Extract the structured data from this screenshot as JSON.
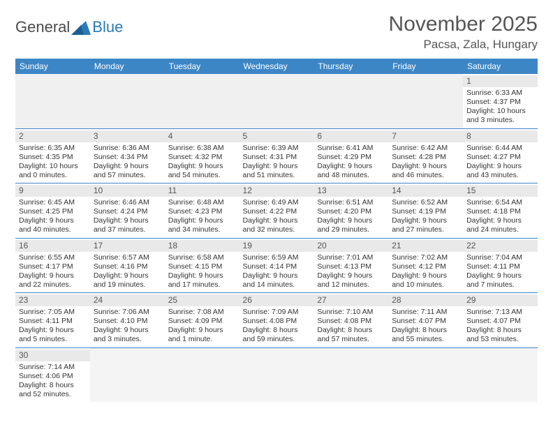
{
  "colors": {
    "header_bg": "#3d86c6",
    "header_text": "#ffffff",
    "daynum_bg": "#e9e9e9",
    "row_divider": "#3d86c6",
    "page_bg": "#ffffff",
    "title_text": "#555555",
    "body_text": "#333333",
    "logo_gray": "#4a4a4a",
    "logo_blue": "#2a7ab8"
  },
  "typography": {
    "title_fontsize": 30,
    "location_fontsize": 17,
    "header_fontsize": 12,
    "cell_fontsize": 10.5,
    "daynum_fontsize": 12
  },
  "logo": {
    "text1": "General",
    "text2": "Blue"
  },
  "title": "November 2025",
  "location": "Pacsa, Zala, Hungary",
  "weekdays": [
    "Sunday",
    "Monday",
    "Tuesday",
    "Wednesday",
    "Thursday",
    "Friday",
    "Saturday"
  ],
  "weeks": [
    [
      null,
      null,
      null,
      null,
      null,
      null,
      {
        "n": "1",
        "sr": "Sunrise: 6:33 AM",
        "ss": "Sunset: 4:37 PM",
        "d1": "Daylight: 10 hours",
        "d2": "and 3 minutes."
      }
    ],
    [
      {
        "n": "2",
        "sr": "Sunrise: 6:35 AM",
        "ss": "Sunset: 4:35 PM",
        "d1": "Daylight: 10 hours",
        "d2": "and 0 minutes."
      },
      {
        "n": "3",
        "sr": "Sunrise: 6:36 AM",
        "ss": "Sunset: 4:34 PM",
        "d1": "Daylight: 9 hours",
        "d2": "and 57 minutes."
      },
      {
        "n": "4",
        "sr": "Sunrise: 6:38 AM",
        "ss": "Sunset: 4:32 PM",
        "d1": "Daylight: 9 hours",
        "d2": "and 54 minutes."
      },
      {
        "n": "5",
        "sr": "Sunrise: 6:39 AM",
        "ss": "Sunset: 4:31 PM",
        "d1": "Daylight: 9 hours",
        "d2": "and 51 minutes."
      },
      {
        "n": "6",
        "sr": "Sunrise: 6:41 AM",
        "ss": "Sunset: 4:29 PM",
        "d1": "Daylight: 9 hours",
        "d2": "and 48 minutes."
      },
      {
        "n": "7",
        "sr": "Sunrise: 6:42 AM",
        "ss": "Sunset: 4:28 PM",
        "d1": "Daylight: 9 hours",
        "d2": "and 46 minutes."
      },
      {
        "n": "8",
        "sr": "Sunrise: 6:44 AM",
        "ss": "Sunset: 4:27 PM",
        "d1": "Daylight: 9 hours",
        "d2": "and 43 minutes."
      }
    ],
    [
      {
        "n": "9",
        "sr": "Sunrise: 6:45 AM",
        "ss": "Sunset: 4:25 PM",
        "d1": "Daylight: 9 hours",
        "d2": "and 40 minutes."
      },
      {
        "n": "10",
        "sr": "Sunrise: 6:46 AM",
        "ss": "Sunset: 4:24 PM",
        "d1": "Daylight: 9 hours",
        "d2": "and 37 minutes."
      },
      {
        "n": "11",
        "sr": "Sunrise: 6:48 AM",
        "ss": "Sunset: 4:23 PM",
        "d1": "Daylight: 9 hours",
        "d2": "and 34 minutes."
      },
      {
        "n": "12",
        "sr": "Sunrise: 6:49 AM",
        "ss": "Sunset: 4:22 PM",
        "d1": "Daylight: 9 hours",
        "d2": "and 32 minutes."
      },
      {
        "n": "13",
        "sr": "Sunrise: 6:51 AM",
        "ss": "Sunset: 4:20 PM",
        "d1": "Daylight: 9 hours",
        "d2": "and 29 minutes."
      },
      {
        "n": "14",
        "sr": "Sunrise: 6:52 AM",
        "ss": "Sunset: 4:19 PM",
        "d1": "Daylight: 9 hours",
        "d2": "and 27 minutes."
      },
      {
        "n": "15",
        "sr": "Sunrise: 6:54 AM",
        "ss": "Sunset: 4:18 PM",
        "d1": "Daylight: 9 hours",
        "d2": "and 24 minutes."
      }
    ],
    [
      {
        "n": "16",
        "sr": "Sunrise: 6:55 AM",
        "ss": "Sunset: 4:17 PM",
        "d1": "Daylight: 9 hours",
        "d2": "and 22 minutes."
      },
      {
        "n": "17",
        "sr": "Sunrise: 6:57 AM",
        "ss": "Sunset: 4:16 PM",
        "d1": "Daylight: 9 hours",
        "d2": "and 19 minutes."
      },
      {
        "n": "18",
        "sr": "Sunrise: 6:58 AM",
        "ss": "Sunset: 4:15 PM",
        "d1": "Daylight: 9 hours",
        "d2": "and 17 minutes."
      },
      {
        "n": "19",
        "sr": "Sunrise: 6:59 AM",
        "ss": "Sunset: 4:14 PM",
        "d1": "Daylight: 9 hours",
        "d2": "and 14 minutes."
      },
      {
        "n": "20",
        "sr": "Sunrise: 7:01 AM",
        "ss": "Sunset: 4:13 PM",
        "d1": "Daylight: 9 hours",
        "d2": "and 12 minutes."
      },
      {
        "n": "21",
        "sr": "Sunrise: 7:02 AM",
        "ss": "Sunset: 4:12 PM",
        "d1": "Daylight: 9 hours",
        "d2": "and 10 minutes."
      },
      {
        "n": "22",
        "sr": "Sunrise: 7:04 AM",
        "ss": "Sunset: 4:11 PM",
        "d1": "Daylight: 9 hours",
        "d2": "and 7 minutes."
      }
    ],
    [
      {
        "n": "23",
        "sr": "Sunrise: 7:05 AM",
        "ss": "Sunset: 4:11 PM",
        "d1": "Daylight: 9 hours",
        "d2": "and 5 minutes."
      },
      {
        "n": "24",
        "sr": "Sunrise: 7:06 AM",
        "ss": "Sunset: 4:10 PM",
        "d1": "Daylight: 9 hours",
        "d2": "and 3 minutes."
      },
      {
        "n": "25",
        "sr": "Sunrise: 7:08 AM",
        "ss": "Sunset: 4:09 PM",
        "d1": "Daylight: 9 hours",
        "d2": "and 1 minute."
      },
      {
        "n": "26",
        "sr": "Sunrise: 7:09 AM",
        "ss": "Sunset: 4:08 PM",
        "d1": "Daylight: 8 hours",
        "d2": "and 59 minutes."
      },
      {
        "n": "27",
        "sr": "Sunrise: 7:10 AM",
        "ss": "Sunset: 4:08 PM",
        "d1": "Daylight: 8 hours",
        "d2": "and 57 minutes."
      },
      {
        "n": "28",
        "sr": "Sunrise: 7:11 AM",
        "ss": "Sunset: 4:07 PM",
        "d1": "Daylight: 8 hours",
        "d2": "and 55 minutes."
      },
      {
        "n": "29",
        "sr": "Sunrise: 7:13 AM",
        "ss": "Sunset: 4:07 PM",
        "d1": "Daylight: 8 hours",
        "d2": "and 53 minutes."
      }
    ],
    [
      {
        "n": "30",
        "sr": "Sunrise: 7:14 AM",
        "ss": "Sunset: 4:06 PM",
        "d1": "Daylight: 8 hours",
        "d2": "and 52 minutes."
      },
      null,
      null,
      null,
      null,
      null,
      null
    ]
  ]
}
